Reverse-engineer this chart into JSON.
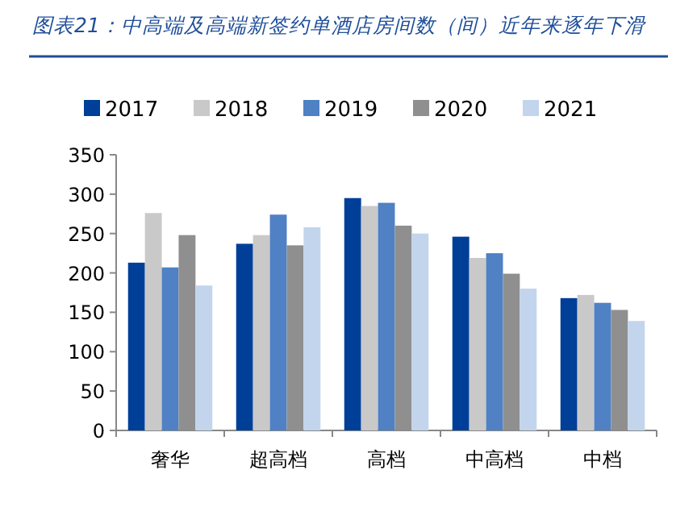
{
  "chart_data": {
    "type": "bar",
    "title": "图表21：中高端及高端新签约单酒店房间数（间）近年来逐年下滑",
    "categories": [
      "奢华",
      "超高档",
      "高档",
      "中高档",
      "中档"
    ],
    "series": [
      {
        "name": "2017",
        "color": "#003f98",
        "values": [
          213,
          237,
          295,
          246,
          168
        ]
      },
      {
        "name": "2018",
        "color": "#c9c9c9",
        "values": [
          276,
          248,
          285,
          219,
          172
        ]
      },
      {
        "name": "2019",
        "color": "#4f81c4",
        "values": [
          207,
          274,
          289,
          225,
          162
        ]
      },
      {
        "name": "2020",
        "color": "#8f8f8f",
        "values": [
          248,
          235,
          260,
          199,
          153
        ]
      },
      {
        "name": "2021",
        "color": "#c3d5ec",
        "values": [
          184,
          258,
          250,
          180,
          139
        ]
      }
    ],
    "ylim": [
      0,
      350
    ],
    "yticks": [
      0,
      50,
      100,
      150,
      200,
      250,
      300,
      350
    ],
    "grid": false,
    "legend": "top"
  }
}
